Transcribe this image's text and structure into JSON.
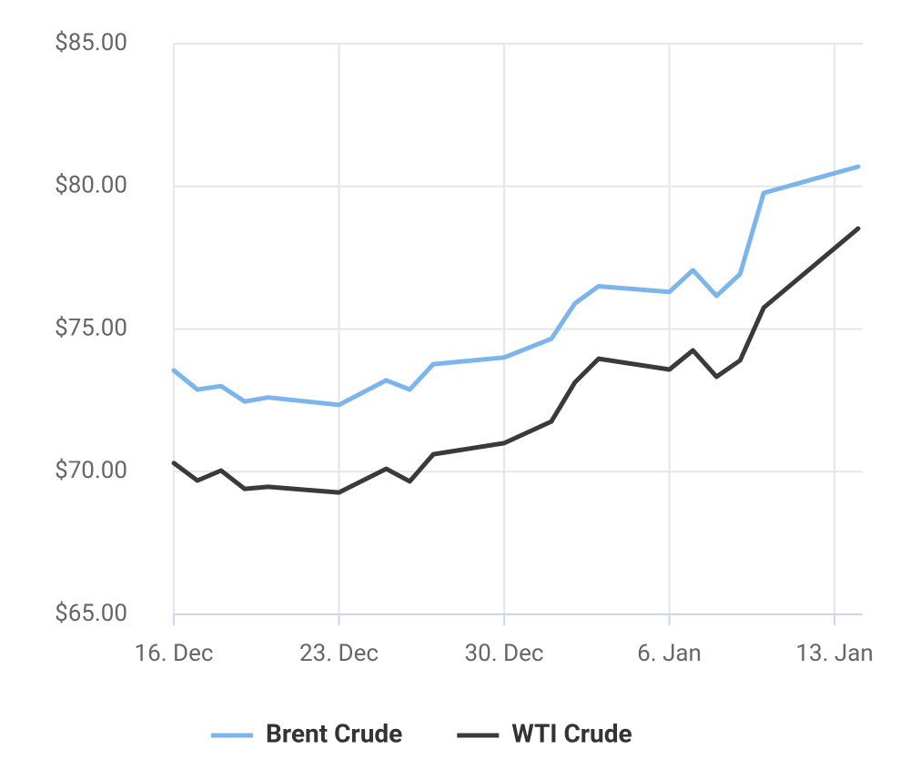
{
  "chart_data": {
    "type": "line",
    "x": [
      "12-16",
      "12-17",
      "12-18",
      "12-19",
      "12-20",
      "12-23",
      "12-25",
      "12-26",
      "12-27",
      "12-30",
      "01-01",
      "01-02",
      "01-03",
      "01-06",
      "01-07",
      "01-08",
      "01-09",
      "01-10",
      "01-14"
    ],
    "series": [
      {
        "name": "Brent Crude",
        "color": "#7cb5ec",
        "values": [
          73.55,
          72.88,
          73.0,
          72.46,
          72.6,
          72.34,
          73.2,
          72.88,
          73.77,
          74.0,
          74.66,
          75.9,
          76.5,
          76.3,
          77.06,
          76.16,
          76.93,
          79.77,
          80.69
        ]
      },
      {
        "name": "WTI Crude",
        "color": "#3a3a3a",
        "values": [
          70.3,
          69.69,
          70.04,
          69.4,
          69.47,
          69.27,
          70.1,
          69.66,
          70.61,
          71.0,
          71.76,
          73.13,
          73.96,
          73.58,
          74.25,
          73.33,
          73.9,
          75.75,
          78.52
        ]
      }
    ],
    "xlim": [
      "12-16",
      "01-14"
    ],
    "xticks": [
      {
        "value": "12-16",
        "label": "16. Dec"
      },
      {
        "value": "12-23",
        "label": "23. Dec"
      },
      {
        "value": "12-30",
        "label": "30. Dec"
      },
      {
        "value": "01-06",
        "label": "6. Jan"
      },
      {
        "value": "01-13",
        "label": "13. Jan"
      }
    ],
    "ylim": [
      65,
      85
    ],
    "yticks": [
      {
        "value": 65,
        "label": "$65.00"
      },
      {
        "value": 70,
        "label": "$70.00"
      },
      {
        "value": 75,
        "label": "$75.00"
      },
      {
        "value": 80,
        "label": "$80.00"
      },
      {
        "value": 85,
        "label": "$85.00"
      }
    ],
    "grid": true,
    "legend": "bottom"
  }
}
